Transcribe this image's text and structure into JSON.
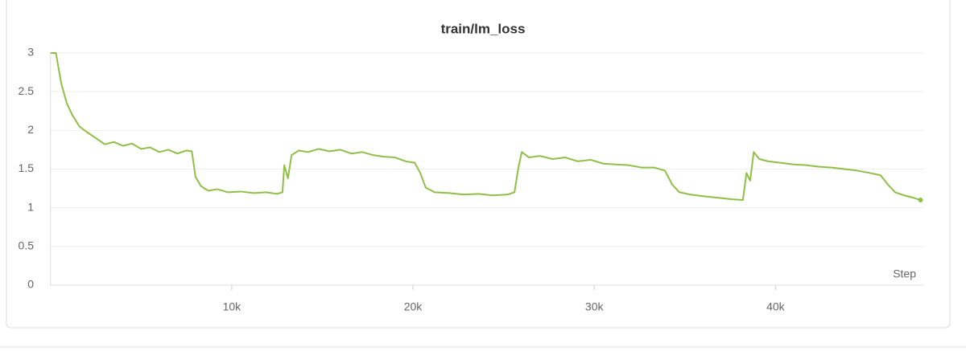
{
  "chart_data": {
    "type": "line",
    "title": "train/lm_loss",
    "x_label": "Step",
    "x": [
      0,
      300,
      600,
      900,
      1200,
      1600,
      2000,
      2500,
      3000,
      3500,
      4000,
      4500,
      5000,
      5500,
      6000,
      6500,
      7000,
      7500,
      7800,
      8000,
      8300,
      8700,
      9200,
      9800,
      10500,
      11200,
      11900,
      12500,
      12800,
      12900,
      13100,
      13300,
      13700,
      14200,
      14800,
      15400,
      16000,
      16600,
      17200,
      17800,
      18400,
      19000,
      19600,
      20100,
      20400,
      20700,
      21200,
      22000,
      22800,
      23600,
      24400,
      25200,
      25600,
      25800,
      26000,
      26400,
      27000,
      27700,
      28400,
      29100,
      29800,
      30500,
      31200,
      31900,
      32600,
      33300,
      33900,
      34300,
      34700,
      35300,
      36000,
      36800,
      37600,
      38200,
      38400,
      38600,
      38800,
      39100,
      39600,
      40300,
      41000,
      41700,
      42400,
      43100,
      43800,
      44500,
      45200,
      45800,
      46200,
      46600,
      47100,
      47600,
      48000
    ],
    "series": [
      {
        "color": "#8fbf47",
        "values": [
          3,
          3,
          2.6,
          2.35,
          2.2,
          2.05,
          1.98,
          1.9,
          1.82,
          1.85,
          1.8,
          1.83,
          1.76,
          1.78,
          1.72,
          1.75,
          1.7,
          1.74,
          1.73,
          1.4,
          1.28,
          1.22,
          1.24,
          1.2,
          1.21,
          1.19,
          1.2,
          1.18,
          1.2,
          1.55,
          1.38,
          1.68,
          1.74,
          1.72,
          1.76,
          1.73,
          1.75,
          1.7,
          1.72,
          1.68,
          1.66,
          1.65,
          1.6,
          1.58,
          1.45,
          1.26,
          1.2,
          1.19,
          1.17,
          1.18,
          1.16,
          1.17,
          1.2,
          1.5,
          1.72,
          1.65,
          1.67,
          1.63,
          1.65,
          1.6,
          1.62,
          1.57,
          1.56,
          1.55,
          1.52,
          1.52,
          1.48,
          1.3,
          1.2,
          1.17,
          1.15,
          1.13,
          1.11,
          1.1,
          1.45,
          1.35,
          1.72,
          1.63,
          1.6,
          1.58,
          1.56,
          1.55,
          1.53,
          1.52,
          1.5,
          1.48,
          1.45,
          1.42,
          1.3,
          1.2,
          1.16,
          1.13,
          1.1
        ]
      }
    ],
    "xlim": [
      0,
      48200
    ],
    "xticks": [
      {
        "value": 10000,
        "label": "10k"
      },
      {
        "value": 20000,
        "label": "20k"
      },
      {
        "value": 30000,
        "label": "30k"
      },
      {
        "value": 40000,
        "label": "40k"
      }
    ],
    "ylim": [
      0,
      3
    ],
    "yticks": [
      0,
      0.5,
      1,
      1.5,
      2,
      2.5,
      3
    ],
    "grid": true
  }
}
